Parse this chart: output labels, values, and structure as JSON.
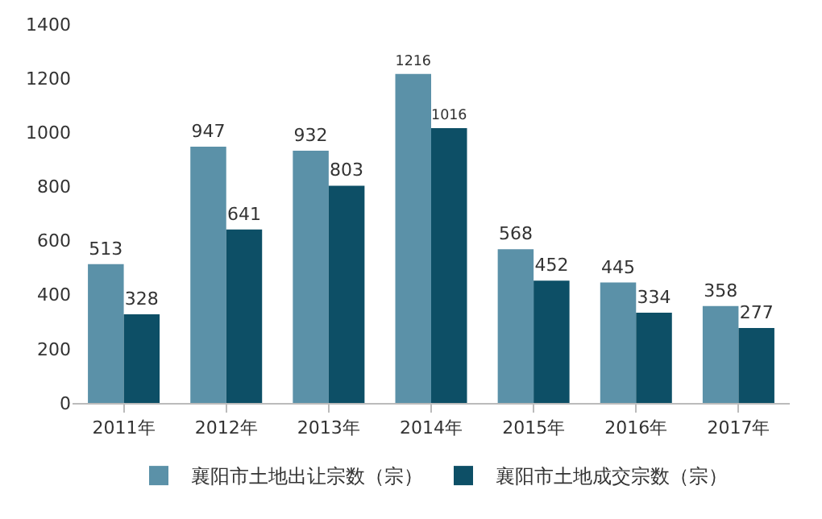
{
  "chart_data": {
    "type": "bar",
    "categories": [
      "2011年",
      "2012年",
      "2013年",
      "2014年",
      "2015年",
      "2016年",
      "2017年"
    ],
    "series": [
      {
        "name": "襄阳市土地出让宗数（宗）",
        "color": "#5b91a8",
        "values": [
          513,
          947,
          932,
          1216,
          568,
          445,
          358
        ]
      },
      {
        "name": "襄阳市土地成交宗数（宗）",
        "color": "#0d4f66",
        "values": [
          328,
          641,
          803,
          1016,
          452,
          334,
          277
        ]
      }
    ],
    "ylim": [
      0,
      1400
    ],
    "yticks": [
      0,
      200,
      400,
      600,
      800,
      1000,
      1200,
      1400
    ],
    "grid": false,
    "legend": "bottom",
    "data_labels": true
  }
}
